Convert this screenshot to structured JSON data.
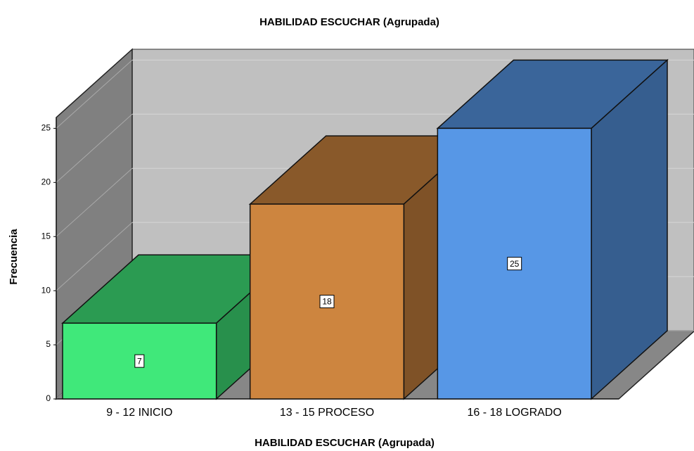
{
  "chart_data": {
    "type": "bar3d",
    "title": "HABILIDAD ESCUCHAR (Agrupada)",
    "x_label": "HABILIDAD ESCUCHAR (Agrupada)",
    "y_label": "Frecuencia",
    "categories": [
      "9 - 12 INICIO",
      "13 - 15 PROCESO",
      "16 - 18 LOGRADO"
    ],
    "values": [
      7,
      18,
      25
    ],
    "colors": [
      "#40e87a",
      "#cd853f",
      "#5797e6"
    ],
    "ylim": [
      0,
      26
    ],
    "yticks": [
      0,
      5,
      10,
      15,
      20,
      25
    ],
    "grid": true
  }
}
